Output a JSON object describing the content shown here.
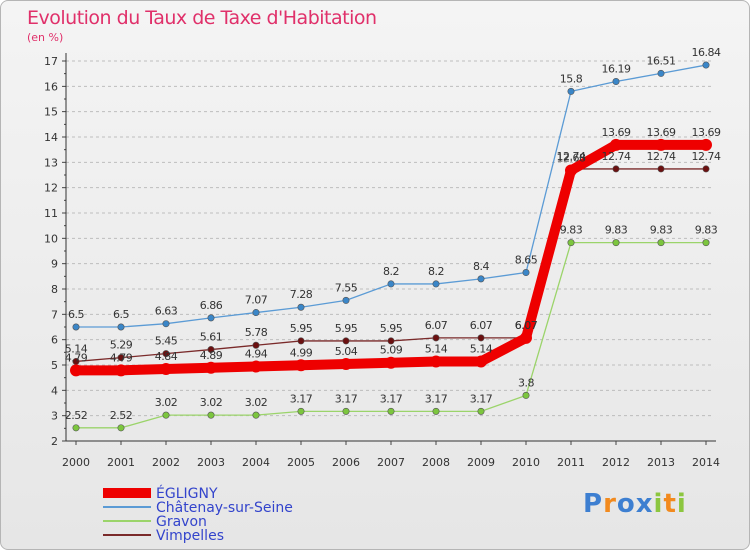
{
  "chart_data": {
    "type": "line",
    "title": "Evolution du Taux de Taxe d'Habitation",
    "subtitle": "(en %)",
    "x": [
      "2000",
      "2001",
      "2002",
      "2003",
      "2004",
      "2005",
      "2006",
      "2007",
      "2008",
      "2009",
      "2010",
      "2011",
      "2012",
      "2013",
      "2014"
    ],
    "ylim": [
      2,
      17
    ],
    "yticks": [
      2,
      3,
      4,
      5,
      6,
      7,
      8,
      9,
      10,
      11,
      12,
      13,
      14,
      15,
      16,
      17
    ],
    "grid": "dashed horizontal",
    "legend_position": "bottom-left",
    "series": [
      {
        "name": "ÉGLIGNY",
        "color": "#ee0000",
        "values": [
          4.79,
          4.79,
          4.84,
          4.89,
          4.94,
          4.99,
          5.04,
          5.09,
          5.14,
          5.14,
          6.07,
          12.68,
          13.69,
          13.69,
          13.69
        ],
        "labels": [
          "4.79",
          "4.79",
          "4.84",
          "4.89",
          "4.94",
          "4.99",
          "5.04",
          "5.09",
          "5.14",
          "5.14",
          "6.07",
          "12.68",
          "13.69",
          "13.69",
          "13.69"
        ]
      },
      {
        "name": "Châtenay-sur-Seine",
        "color": "#5b9bd5",
        "marker_color": "#3a86c8",
        "values": [
          6.5,
          6.5,
          6.63,
          6.86,
          7.07,
          7.28,
          7.55,
          8.2,
          8.2,
          8.4,
          8.65,
          15.8,
          16.19,
          16.51,
          16.84
        ],
        "labels": [
          "6.5",
          "6.5",
          "6.63",
          "6.86",
          "7.07",
          "7.28",
          "7.55",
          "8.2",
          "8.2",
          "8.4",
          "8.65",
          "15.8",
          "16.19",
          "16.51",
          "16.84"
        ]
      },
      {
        "name": "Gravon",
        "color": "#9bd46a",
        "marker_color": "#7cc63e",
        "values": [
          2.52,
          2.52,
          3.02,
          3.02,
          3.02,
          3.17,
          3.17,
          3.17,
          3.17,
          3.17,
          3.8,
          9.83,
          9.83,
          9.83,
          9.83
        ],
        "labels": [
          "2.52",
          "2.52",
          "3.02",
          "3.02",
          "3.02",
          "3.17",
          "3.17",
          "3.17",
          "3.17",
          "3.17",
          "3.8",
          "9.83",
          "9.83",
          "9.83",
          "9.83"
        ]
      },
      {
        "name": "Vimpelles",
        "color": "#7a2a2a",
        "marker_color": "#6b1010",
        "values": [
          5.14,
          5.29,
          5.45,
          5.61,
          5.78,
          5.95,
          5.95,
          5.95,
          6.07,
          6.07,
          6.07,
          12.74,
          12.74,
          12.74,
          12.74
        ],
        "labels": [
          "5.14",
          "5.29",
          "5.45",
          "5.61",
          "5.78",
          "5.95",
          "5.95",
          "5.95",
          "6.07",
          "6.07",
          "6.07",
          "12.74",
          "12.74",
          "12.74",
          "12.74"
        ]
      }
    ]
  },
  "logo": {
    "text": "Proxiti",
    "letters": [
      {
        "ch": "P",
        "color": "#3d7fd1"
      },
      {
        "ch": "r",
        "color": "#f28a1e"
      },
      {
        "ch": "o",
        "color": "#3d7fd1"
      },
      {
        "ch": "x",
        "color": "#3d7fd1"
      },
      {
        "ch": "i",
        "color": "#8cc63f"
      },
      {
        "ch": "t",
        "color": "#f28a1e"
      },
      {
        "ch": "i",
        "color": "#8cc63f"
      }
    ]
  }
}
